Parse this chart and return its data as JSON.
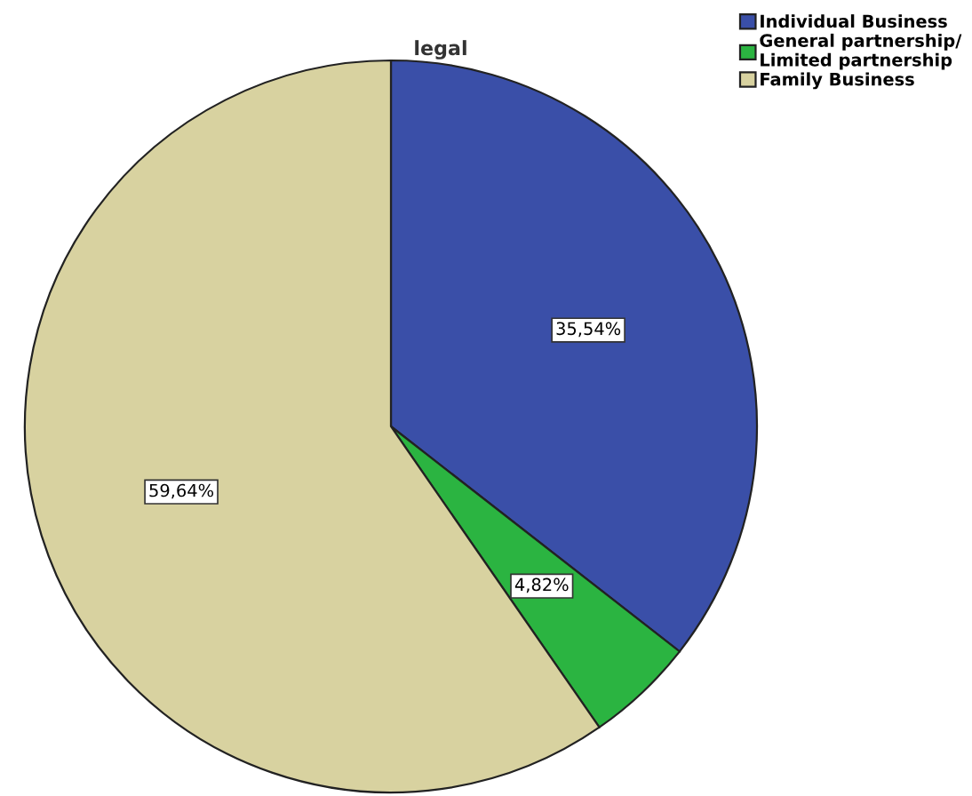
{
  "chart_data": {
    "type": "pie",
    "title": "legal",
    "categories": [
      "Individual Business",
      "General partnership/\nLimited partnership",
      "Family Business"
    ],
    "values": [
      35.54,
      4.82,
      59.64
    ],
    "value_labels": [
      "35,54%",
      "4,82%",
      "59,64%"
    ],
    "colors": [
      "#3a4fa8",
      "#2bb441",
      "#d8d2a0"
    ],
    "legend": "top right"
  }
}
